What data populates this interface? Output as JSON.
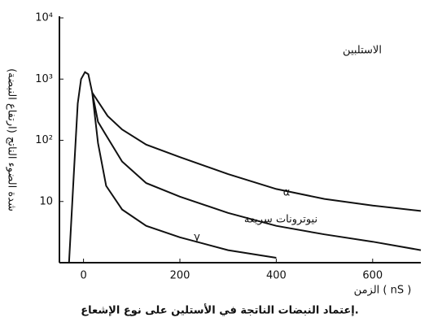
{
  "chart_data": {
    "type": "line",
    "title": "الاستلبين",
    "y_label": "شدة الضوء الناتج (ارتفاع النبضة)",
    "x_label": "الزمن ( nS )",
    "caption": "إعتماد النبضات الناتجة في الأستلين على نوع الإشعاع.",
    "ylog": true,
    "xlim": [
      -50,
      700
    ],
    "ylim": [
      1,
      10000
    ],
    "xticks": [
      0,
      200,
      400,
      600
    ],
    "yticks": [
      {
        "value": 10,
        "label": "10"
      },
      {
        "value": 100,
        "label": "10²"
      },
      {
        "value": 1000,
        "label": "10³"
      },
      {
        "value": 10000,
        "label": "10⁴"
      }
    ],
    "color": "#111111",
    "series": [
      {
        "name": "α",
        "x": [
          -30,
          -20,
          -12,
          -5,
          3,
          10,
          18,
          50,
          80,
          130,
          200,
          300,
          400,
          500,
          600,
          700
        ],
        "values": [
          1,
          30,
          400,
          1000,
          1300,
          1200,
          600,
          250,
          150,
          85,
          53,
          28,
          16,
          11,
          8.6,
          7
        ]
      },
      {
        "name": "نيوترونات سريعة",
        "x": [
          18,
          30,
          50,
          80,
          130,
          200,
          300,
          400,
          500,
          600,
          700
        ],
        "values": [
          600,
          200,
          110,
          45,
          20,
          12,
          6.5,
          4,
          2.9,
          2.2,
          1.6
        ]
      },
      {
        "name": "γ",
        "x": [
          18,
          30,
          47,
          80,
          130,
          200,
          300,
          400
        ],
        "values": [
          600,
          90,
          18,
          7.4,
          4,
          2.6,
          1.6,
          1.2
        ]
      }
    ]
  }
}
